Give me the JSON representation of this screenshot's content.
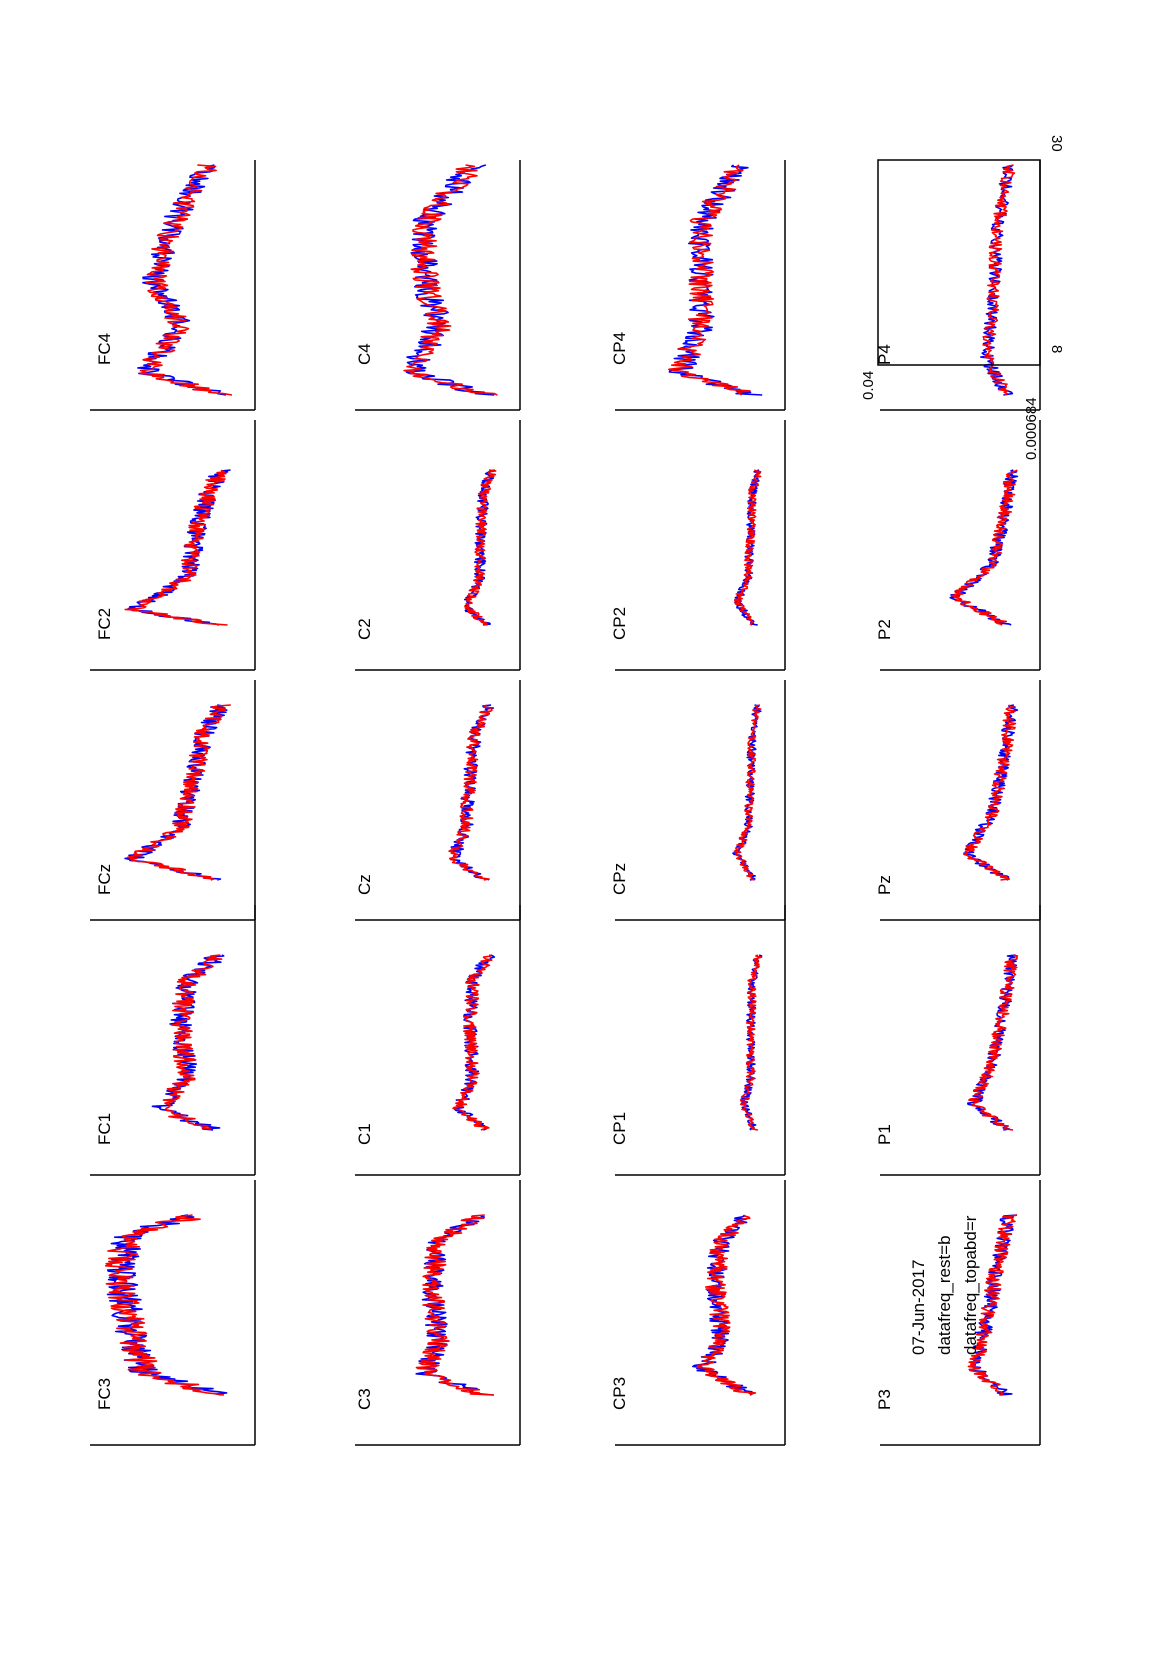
{
  "figure": {
    "date": "07-Jun-2017",
    "legend_lines": [
      "datafreq_rest=b",
      "datafreq_topabd=r"
    ],
    "axis_ticks": {
      "y_min": "0.000684",
      "y_max": "0.04",
      "x_min": "8",
      "x_max": "30"
    }
  },
  "colors": {
    "rest": "#0000ff",
    "topabd": "#ff0000",
    "axes": "#000000"
  },
  "chart_data": {
    "type": "line",
    "x_range": [
      8,
      30
    ],
    "y_range": [
      0.000684,
      0.04
    ],
    "series_legend": [
      "datafreq_rest=b",
      "datafreq_topabd=r"
    ],
    "channels": [
      {
        "name": "FC3",
        "profile": [
          [
            0,
            0.1
          ],
          [
            0.12,
            0.65
          ],
          [
            0.3,
            0.75
          ],
          [
            0.5,
            0.8
          ],
          [
            0.7,
            0.85
          ],
          [
            0.9,
            0.78
          ],
          [
            1,
            0.25
          ]
        ],
        "noise": 0.12
      },
      {
        "name": "FC1",
        "profile": [
          [
            0,
            0.15
          ],
          [
            0.12,
            0.55
          ],
          [
            0.3,
            0.35
          ],
          [
            0.6,
            0.4
          ],
          [
            0.85,
            0.35
          ],
          [
            1,
            0.12
          ]
        ],
        "noise": 0.08
      },
      {
        "name": "FCz",
        "profile": [
          [
            0,
            0.12
          ],
          [
            0.12,
            0.75
          ],
          [
            0.3,
            0.4
          ],
          [
            0.6,
            0.3
          ],
          [
            0.85,
            0.22
          ],
          [
            1,
            0.1
          ]
        ],
        "noise": 0.07
      },
      {
        "name": "FC2",
        "profile": [
          [
            0,
            0.12
          ],
          [
            0.1,
            0.75
          ],
          [
            0.3,
            0.35
          ],
          [
            0.6,
            0.28
          ],
          [
            0.85,
            0.2
          ],
          [
            1,
            0.1
          ]
        ],
        "noise": 0.07
      },
      {
        "name": "FC4",
        "profile": [
          [
            0,
            0.1
          ],
          [
            0.1,
            0.65
          ],
          [
            0.3,
            0.4
          ],
          [
            0.5,
            0.6
          ],
          [
            0.75,
            0.45
          ],
          [
            1,
            0.2
          ]
        ],
        "noise": 0.09
      },
      {
        "name": "C3",
        "profile": [
          [
            0,
            0.12
          ],
          [
            0.12,
            0.55
          ],
          [
            0.3,
            0.45
          ],
          [
            0.6,
            0.5
          ],
          [
            0.85,
            0.45
          ],
          [
            1,
            0.15
          ]
        ],
        "noise": 0.08
      },
      {
        "name": "C1",
        "profile": [
          [
            0,
            0.1
          ],
          [
            0.12,
            0.3
          ],
          [
            0.3,
            0.2
          ],
          [
            0.6,
            0.22
          ],
          [
            0.85,
            0.2
          ],
          [
            1,
            0.08
          ]
        ],
        "noise": 0.05
      },
      {
        "name": "Cz",
        "profile": [
          [
            0,
            0.1
          ],
          [
            0.12,
            0.35
          ],
          [
            0.3,
            0.25
          ],
          [
            0.6,
            0.22
          ],
          [
            0.85,
            0.18
          ],
          [
            1,
            0.08
          ]
        ],
        "noise": 0.05
      },
      {
        "name": "C2",
        "profile": [
          [
            0,
            0.1
          ],
          [
            0.12,
            0.25
          ],
          [
            0.3,
            0.15
          ],
          [
            0.6,
            0.14
          ],
          [
            0.85,
            0.12
          ],
          [
            1,
            0.06
          ]
        ],
        "noise": 0.04
      },
      {
        "name": "C4",
        "profile": [
          [
            0,
            0.1
          ],
          [
            0.1,
            0.65
          ],
          [
            0.3,
            0.45
          ],
          [
            0.5,
            0.55
          ],
          [
            0.75,
            0.55
          ],
          [
            1,
            0.2
          ]
        ],
        "noise": 0.1
      },
      {
        "name": "CP3",
        "profile": [
          [
            0,
            0.1
          ],
          [
            0.15,
            0.45
          ],
          [
            0.3,
            0.3
          ],
          [
            0.6,
            0.35
          ],
          [
            0.85,
            0.32
          ],
          [
            1,
            0.12
          ]
        ],
        "noise": 0.07
      },
      {
        "name": "CP1",
        "profile": [
          [
            0,
            0.08
          ],
          [
            0.15,
            0.15
          ],
          [
            0.3,
            0.1
          ],
          [
            0.6,
            0.1
          ],
          [
            0.85,
            0.09
          ],
          [
            1,
            0.05
          ]
        ],
        "noise": 0.03
      },
      {
        "name": "CPz",
        "profile": [
          [
            0,
            0.08
          ],
          [
            0.15,
            0.2
          ],
          [
            0.3,
            0.12
          ],
          [
            0.6,
            0.1
          ],
          [
            0.85,
            0.09
          ],
          [
            1,
            0.05
          ]
        ],
        "noise": 0.03
      },
      {
        "name": "CP2",
        "profile": [
          [
            0,
            0.08
          ],
          [
            0.15,
            0.2
          ],
          [
            0.3,
            0.12
          ],
          [
            0.6,
            0.1
          ],
          [
            0.85,
            0.09
          ],
          [
            1,
            0.05
          ]
        ],
        "noise": 0.03
      },
      {
        "name": "CP4",
        "profile": [
          [
            0,
            0.1
          ],
          [
            0.1,
            0.6
          ],
          [
            0.3,
            0.45
          ],
          [
            0.5,
            0.45
          ],
          [
            0.75,
            0.45
          ],
          [
            1,
            0.18
          ]
        ],
        "noise": 0.09
      },
      {
        "name": "P3",
        "profile": [
          [
            0,
            0.1
          ],
          [
            0.15,
            0.35
          ],
          [
            0.4,
            0.25
          ],
          [
            0.7,
            0.18
          ],
          [
            1,
            0.08
          ]
        ],
        "noise": 0.06
      },
      {
        "name": "P1",
        "profile": [
          [
            0,
            0.1
          ],
          [
            0.15,
            0.35
          ],
          [
            0.4,
            0.2
          ],
          [
            0.7,
            0.12
          ],
          [
            1,
            0.06
          ]
        ],
        "noise": 0.05
      },
      {
        "name": "Pz",
        "profile": [
          [
            0,
            0.1
          ],
          [
            0.15,
            0.4
          ],
          [
            0.4,
            0.2
          ],
          [
            0.7,
            0.12
          ],
          [
            1,
            0.06
          ]
        ],
        "noise": 0.05
      },
      {
        "name": "P2",
        "profile": [
          [
            0,
            0.1
          ],
          [
            0.18,
            0.5
          ],
          [
            0.4,
            0.2
          ],
          [
            0.7,
            0.12
          ],
          [
            1,
            0.06
          ]
        ],
        "noise": 0.05
      },
      {
        "name": "P4",
        "profile": [
          [
            0,
            0.1
          ],
          [
            0.15,
            0.25
          ],
          [
            0.4,
            0.2
          ],
          [
            0.7,
            0.18
          ],
          [
            1,
            0.08
          ]
        ],
        "noise": 0.05
      }
    ]
  }
}
